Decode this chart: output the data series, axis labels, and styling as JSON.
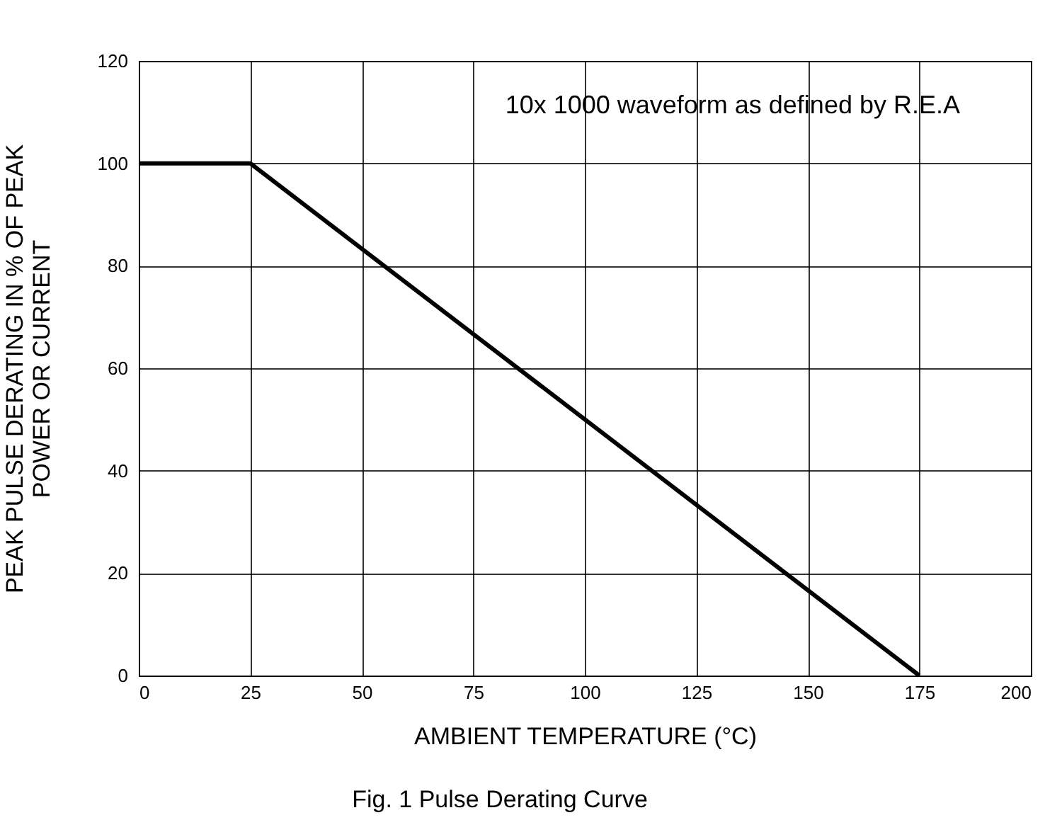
{
  "chart_data": {
    "type": "line",
    "xlabel": "AMBIENT TEMPERATURE (°C)",
    "ylabel": "PEAK PULSE DERATING IN % OF PEAK\nPOWER OR CURRENT",
    "x": [
      0,
      25,
      175
    ],
    "series": [
      {
        "color": "#000000",
        "values": [
          100,
          100,
          0
        ]
      }
    ],
    "xlim": [
      0,
      200
    ],
    "xticks": [
      0,
      25,
      50,
      75,
      100,
      125,
      150,
      175,
      200
    ],
    "ylim": [
      0,
      120
    ],
    "yticks": [
      0,
      20,
      40,
      60,
      80,
      100,
      120
    ],
    "grid": true,
    "marker": "none",
    "line_style": "solid",
    "annotations": [
      "10x 1000 waveform as defined by R.E.A",
      "Fig. 1 Pulse Derating Curve"
    ]
  }
}
